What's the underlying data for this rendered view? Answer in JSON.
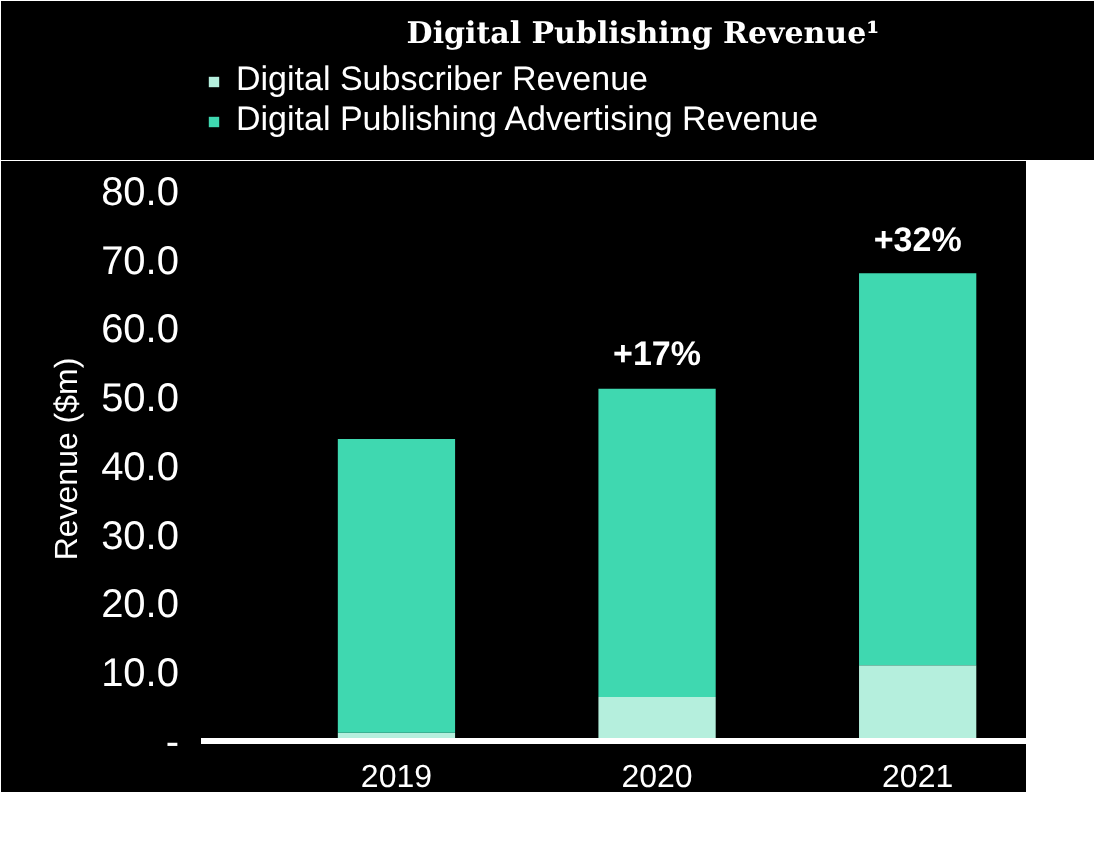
{
  "chart_data": {
    "type": "bar",
    "title": "Digital Publishing Revenue¹",
    "ylabel": "Revenue ($m)",
    "categories": [
      "2019",
      "2020",
      "2021"
    ],
    "stacked": true,
    "series": [
      {
        "name": "Digital Subscriber Revenue",
        "color": "#b5efdd",
        "values": [
          1.2,
          6.4,
          11.0
        ]
      },
      {
        "name": "Digital Publishing Advertising Revenue",
        "color": "#3fd8b0",
        "values": [
          42.7,
          44.8,
          57.0
        ]
      }
    ],
    "ylim": [
      0,
      82
    ],
    "yticks": [
      {
        "value": 0,
        "label": "-"
      },
      {
        "value": 10,
        "label": "10.0"
      },
      {
        "value": 20,
        "label": "20.0"
      },
      {
        "value": 30,
        "label": "30.0"
      },
      {
        "value": 40,
        "label": "40.0"
      },
      {
        "value": 50,
        "label": "50.0"
      },
      {
        "value": 60,
        "label": "60.0"
      },
      {
        "value": 70,
        "label": "70.0"
      },
      {
        "value": 80,
        "label": "80.0"
      }
    ],
    "annotations": [
      {
        "text": "+17%",
        "x": "2020",
        "y": 51.2
      },
      {
        "text": "+32%",
        "x": "2021",
        "y": 67.8
      }
    ],
    "grid": false,
    "legend": "top left"
  }
}
